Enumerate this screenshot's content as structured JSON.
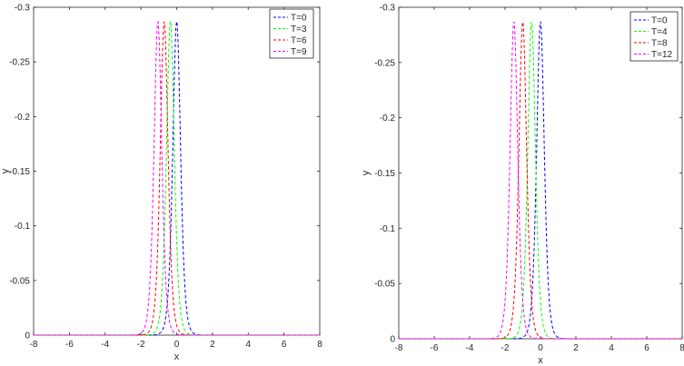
{
  "chart_data": [
    {
      "type": "line",
      "title": "",
      "xlabel": "x",
      "ylabel": "y",
      "xlim": [
        -8,
        8
      ],
      "ylim": [
        -0.3,
        0
      ],
      "y_axis_reversed": true,
      "grid": false,
      "legend_position": "top-right",
      "x_ticks": [
        "-8",
        "-6",
        "-4",
        "-2",
        "0",
        "2",
        "4",
        "6",
        "8"
      ],
      "y_ticks": [
        "0",
        "-0.05",
        "-0.1",
        "-0.15",
        "-0.2",
        "-0.25",
        "-0.3"
      ],
      "line_style": "dashed",
      "series": [
        {
          "name": "T=0",
          "color": "#0000ff",
          "peak_x": 0.0,
          "peak_y": -0.287
        },
        {
          "name": "T=3",
          "color": "#00ff00",
          "peak_x": -0.35,
          "peak_y": -0.287
        },
        {
          "name": "T=6",
          "color": "#ff0000",
          "peak_x": -0.7,
          "peak_y": -0.287
        },
        {
          "name": "T=9",
          "color": "#ff00ff",
          "peak_x": -1.05,
          "peak_y": -0.287
        }
      ]
    },
    {
      "type": "line",
      "title": "",
      "xlabel": "x",
      "ylabel": "y",
      "xlim": [
        -8,
        8
      ],
      "ylim": [
        -0.3,
        0
      ],
      "y_axis_reversed": true,
      "grid": false,
      "legend_position": "top-right",
      "x_ticks": [
        "-8",
        "-6",
        "-4",
        "-2",
        "0",
        "2",
        "4",
        "6",
        "8"
      ],
      "y_ticks": [
        "0",
        "-0.05",
        "-0.1",
        "-0.15",
        "-0.2",
        "-0.25",
        "-0.3"
      ],
      "line_style": "dashed",
      "series": [
        {
          "name": "T=0",
          "color": "#0000ff",
          "peak_x": 0.0,
          "peak_y": -0.287
        },
        {
          "name": "T=4",
          "color": "#00ff00",
          "peak_x": -0.5,
          "peak_y": -0.287
        },
        {
          "name": "T=8",
          "color": "#ff0000",
          "peak_x": -1.0,
          "peak_y": -0.287
        },
        {
          "name": "T=12",
          "color": "#ff00ff",
          "peak_x": -1.5,
          "peak_y": -0.287
        }
      ]
    }
  ]
}
